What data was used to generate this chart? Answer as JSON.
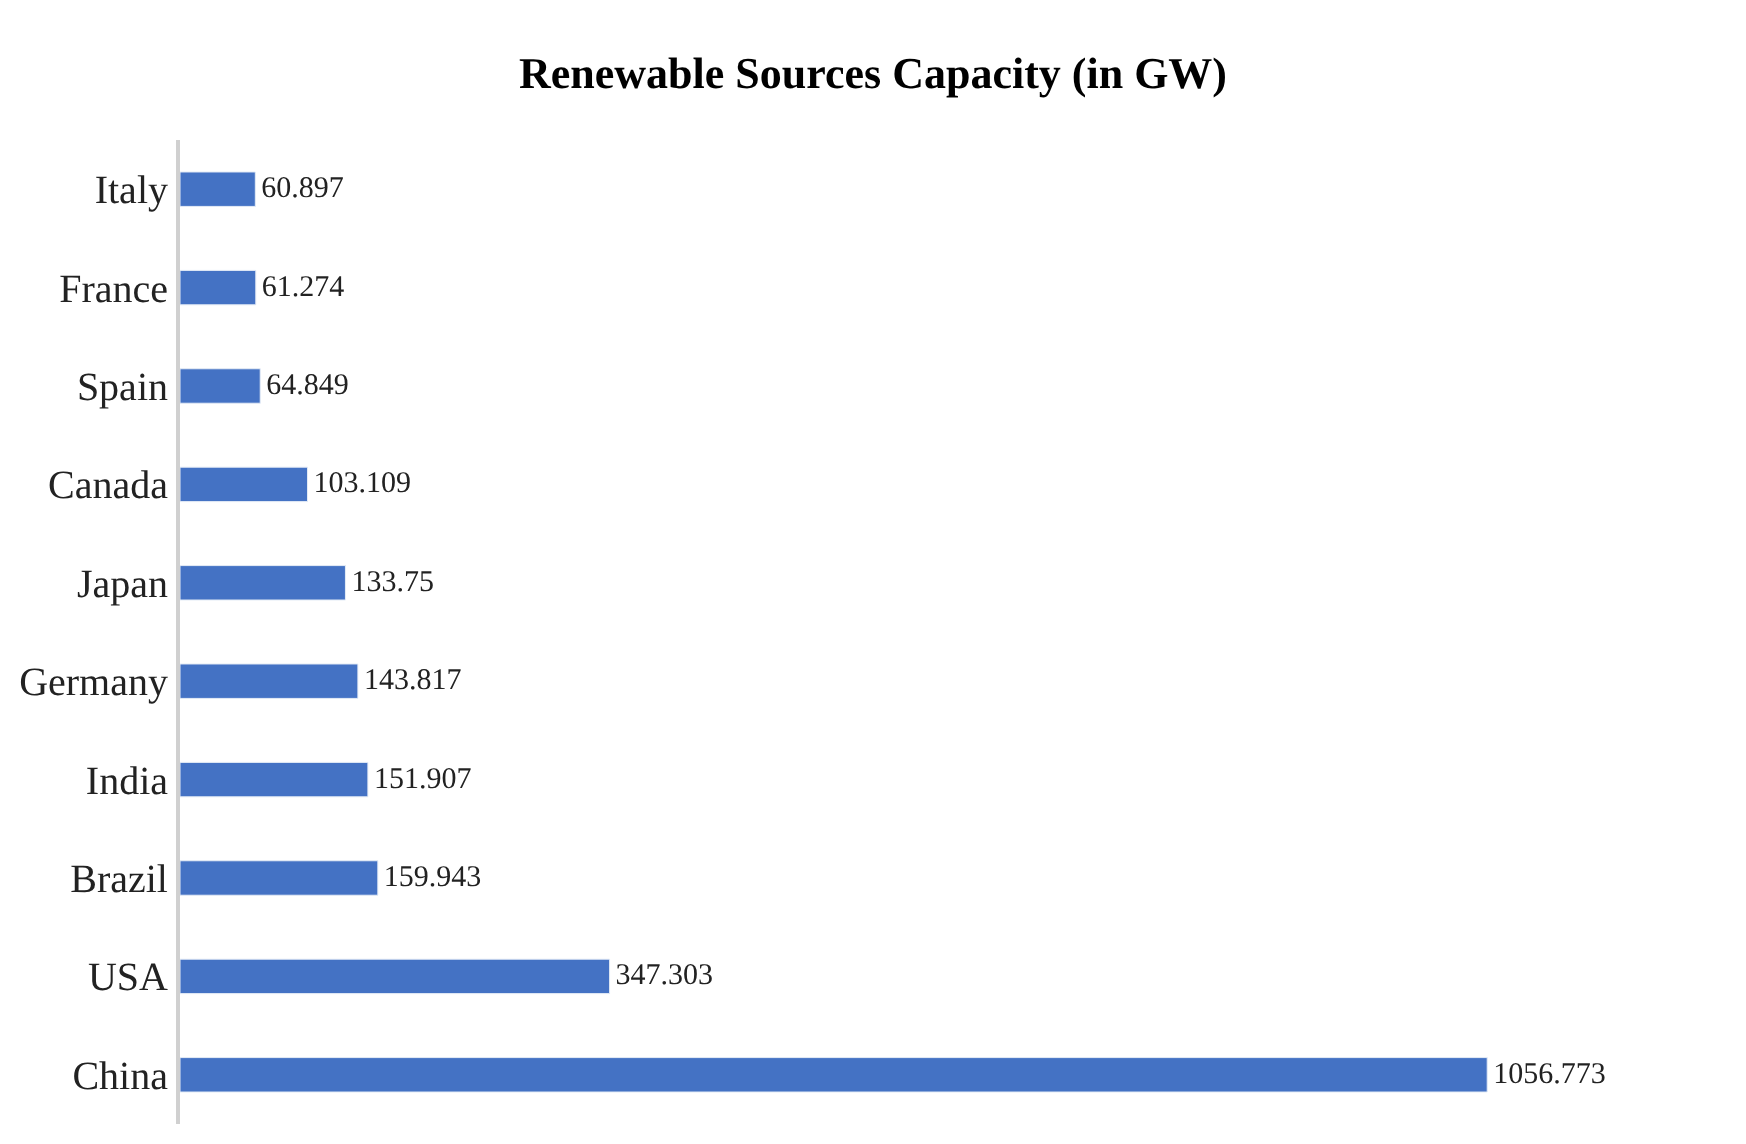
{
  "chart_data": {
    "type": "bar",
    "orientation": "horizontal",
    "title": "Renewable Sources Capacity (in GW)",
    "categories": [
      "Italy",
      "France",
      "Spain",
      "Canada",
      "Japan",
      "Germany",
      "India",
      "Brazil",
      "USA",
      "China"
    ],
    "values": [
      60.897,
      61.274,
      64.849,
      103.109,
      133.75,
      143.817,
      151.907,
      159.943,
      347.303,
      1056.773
    ],
    "color": "#4472c4",
    "data_labels": true
  }
}
